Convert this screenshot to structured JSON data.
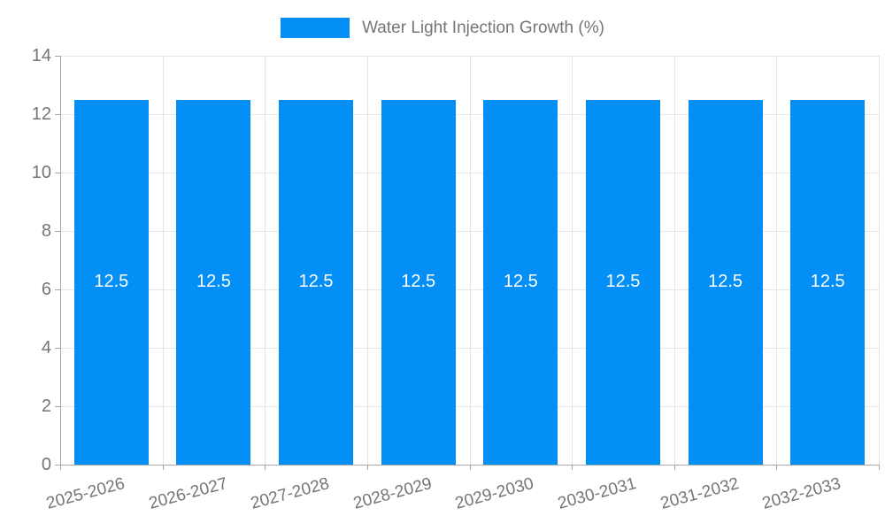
{
  "legend": {
    "label": "Water Light Injection Growth (%)"
  },
  "chart_data": {
    "type": "bar",
    "title": "Water Light Injection Growth (%)",
    "categories": [
      "2025-2026",
      "2026-2027",
      "2027-2028",
      "2028-2029",
      "2029-2030",
      "2030-2031",
      "2031-2032",
      "2032-2033"
    ],
    "values": [
      12.5,
      12.5,
      12.5,
      12.5,
      12.5,
      12.5,
      12.5,
      12.5
    ],
    "bar_labels": [
      "12.5",
      "12.5",
      "12.5",
      "12.5",
      "12.5",
      "12.5",
      "12.5",
      "12.5"
    ],
    "xlabel": "",
    "ylabel": "",
    "ylim": [
      0,
      14
    ],
    "yticks": [
      0,
      2,
      4,
      6,
      8,
      10,
      12,
      14
    ],
    "grid": true,
    "legend_position": "top",
    "colors": {
      "bar": "#048FF7",
      "grid": "#e6e6e6",
      "axis": "#a6a6a6",
      "tick_text": "#757575",
      "value_label": "#ffffff",
      "background": "#ffffff"
    }
  }
}
